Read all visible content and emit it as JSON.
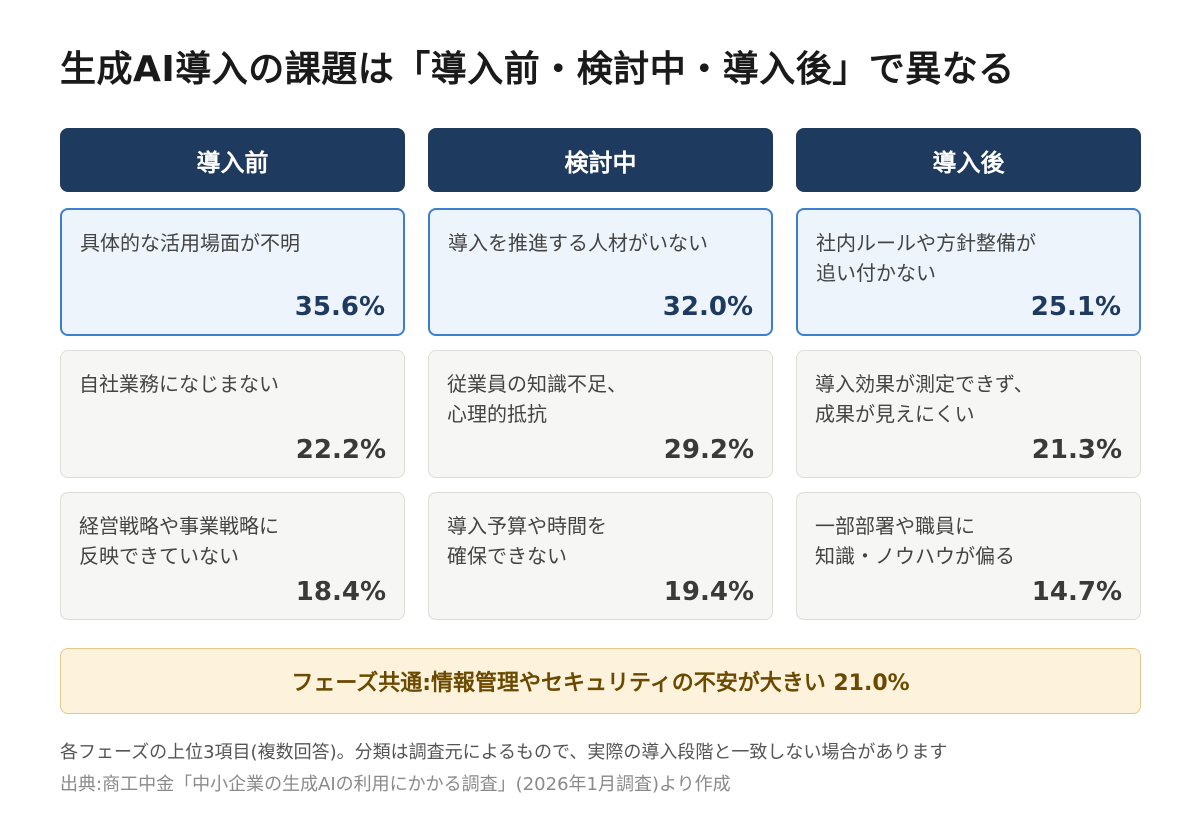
{
  "title": "生成AI導入の課題は「導入前・検討中・導入後」で異なる",
  "columns": [
    {
      "header": "導入前",
      "cards": [
        {
          "label": "具体的な活用場面が不明",
          "value": "35.6%"
        },
        {
          "label": "自社業務になじまない",
          "value": "22.2%"
        },
        {
          "label": "経営戦略や事業戦略に\n反映できていない",
          "value": "18.4%"
        }
      ]
    },
    {
      "header": "検討中",
      "cards": [
        {
          "label": "導入を推進する人材がいない",
          "value": "32.0%"
        },
        {
          "label": "従業員の知識不足、\n心理的抵抗",
          "value": "29.2%"
        },
        {
          "label": "導入予算や時間を\n確保できない",
          "value": "19.4%"
        }
      ]
    },
    {
      "header": "導入後",
      "cards": [
        {
          "label": "社内ルールや方針整備が\n追い付かない",
          "value": "25.1%"
        },
        {
          "label": "導入効果が測定できず、\n成果が見えにくい",
          "value": "21.3%"
        },
        {
          "label": "一部部署や職員に\n知識・ノウハウが偏る",
          "value": "14.7%"
        }
      ]
    }
  ],
  "common": "フェーズ共通:情報管理やセキュリティの不安が大きい 21.0%",
  "note": "各フェーズの上位3項目(複数回答)。分類は調査元によるもので、実際の導入段階と一致しない場合があります",
  "source": "出典:商工中金「中小企業の生成AIの利用にかかる調査」(2026年1月調査)より作成",
  "colors": {
    "header_bg": "#1f3a5f",
    "top_card_bg": "#eef4fc",
    "top_card_border": "#3b7fce",
    "card_bg": "#f6f6f4",
    "common_bg": "#fdf3dd",
    "common_text": "#6b4a00"
  }
}
